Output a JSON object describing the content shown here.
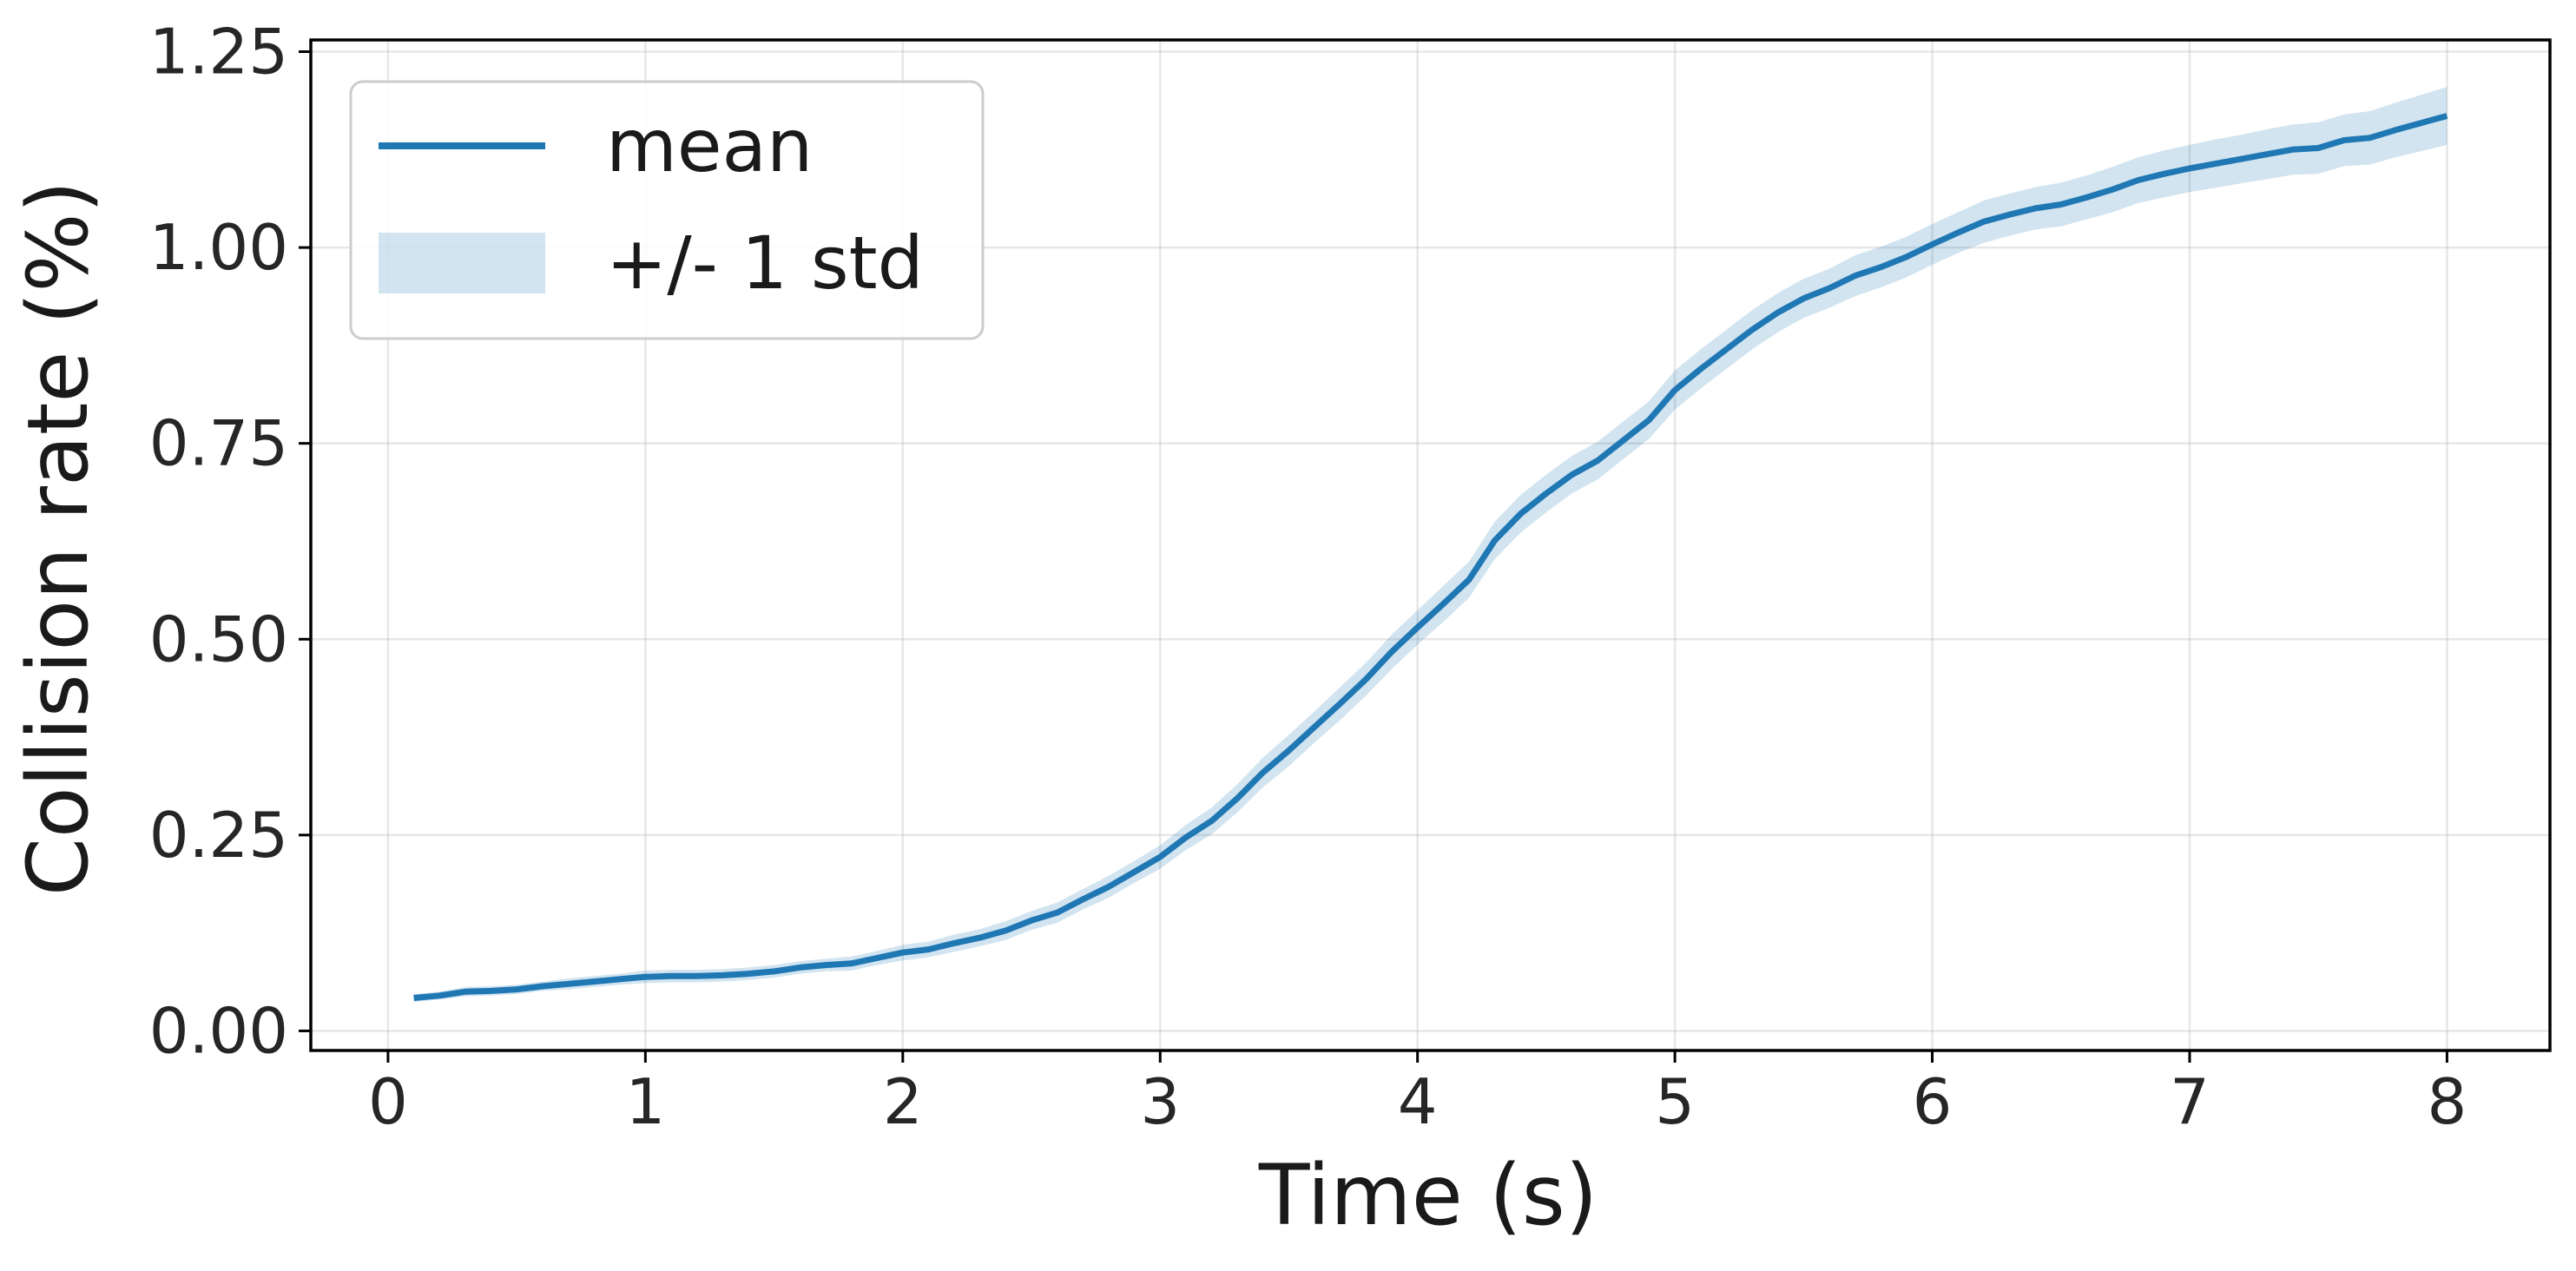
{
  "chart_data": {
    "type": "line",
    "title": "",
    "xlabel": "Time (s)",
    "ylabel": "Collision rate (%)",
    "xlim": [
      -0.3,
      8.4
    ],
    "ylim": [
      -0.025,
      1.265
    ],
    "xticks": [
      0,
      1,
      2,
      3,
      4,
      5,
      6,
      7,
      8
    ],
    "xtick_labels": [
      "0",
      "1",
      "2",
      "3",
      "4",
      "5",
      "6",
      "7",
      "8"
    ],
    "yticks": [
      0.0,
      0.25,
      0.5,
      0.75,
      1.0,
      1.25
    ],
    "ytick_labels": [
      "0.00",
      "0.25",
      "0.50",
      "0.75",
      "1.00",
      "1.25"
    ],
    "grid": true,
    "legend_position": "top-left",
    "legend": {
      "line_label": "mean",
      "band_label": "+/- 1 std"
    },
    "colors": {
      "line": "#1f77b4",
      "band": "#1f77b4"
    },
    "series": [
      {
        "name": "mean",
        "x": [
          0.1,
          0.2,
          0.3,
          0.4,
          0.5,
          0.6,
          0.7,
          0.8,
          0.9,
          1.0,
          1.1,
          1.2,
          1.3,
          1.4,
          1.5,
          1.6,
          1.7,
          1.8,
          1.9,
          2.0,
          2.1,
          2.2,
          2.3,
          2.4,
          2.5,
          2.6,
          2.7,
          2.8,
          2.9,
          3.0,
          3.1,
          3.2,
          3.3,
          3.4,
          3.5,
          3.6,
          3.7,
          3.8,
          3.9,
          4.0,
          4.1,
          4.2,
          4.3,
          4.4,
          4.5,
          4.6,
          4.7,
          4.8,
          4.9,
          5.0,
          5.1,
          5.2,
          5.3,
          5.4,
          5.5,
          5.6,
          5.7,
          5.8,
          5.9,
          6.0,
          6.1,
          6.2,
          6.3,
          6.4,
          6.5,
          6.6,
          6.7,
          6.8,
          6.9,
          7.0,
          7.1,
          7.2,
          7.3,
          7.4,
          7.5,
          7.6,
          7.7,
          7.8,
          7.9,
          8.0
        ],
        "y": [
          0.042,
          0.045,
          0.05,
          0.051,
          0.053,
          0.057,
          0.06,
          0.063,
          0.066,
          0.069,
          0.07,
          0.07,
          0.071,
          0.073,
          0.076,
          0.081,
          0.084,
          0.086,
          0.093,
          0.1,
          0.104,
          0.112,
          0.119,
          0.128,
          0.141,
          0.151,
          0.168,
          0.184,
          0.203,
          0.222,
          0.247,
          0.268,
          0.297,
          0.33,
          0.358,
          0.388,
          0.418,
          0.449,
          0.484,
          0.515,
          0.545,
          0.576,
          0.626,
          0.66,
          0.686,
          0.71,
          0.728,
          0.754,
          0.78,
          0.818,
          0.845,
          0.87,
          0.895,
          0.917,
          0.935,
          0.948,
          0.964,
          0.975,
          0.988,
          1.004,
          1.019,
          1.033,
          1.042,
          1.05,
          1.055,
          1.064,
          1.074,
          1.086,
          1.094,
          1.101,
          1.107,
          1.113,
          1.119,
          1.125,
          1.127,
          1.137,
          1.14,
          1.15,
          1.159,
          1.168
        ],
        "std": [
          0.005,
          0.005,
          0.006,
          0.006,
          0.006,
          0.006,
          0.007,
          0.007,
          0.007,
          0.008,
          0.008,
          0.008,
          0.008,
          0.008,
          0.008,
          0.008,
          0.008,
          0.009,
          0.009,
          0.01,
          0.01,
          0.011,
          0.011,
          0.012,
          0.012,
          0.013,
          0.013,
          0.014,
          0.014,
          0.015,
          0.016,
          0.017,
          0.018,
          0.019,
          0.02,
          0.02,
          0.021,
          0.021,
          0.022,
          0.022,
          0.023,
          0.023,
          0.024,
          0.024,
          0.024,
          0.024,
          0.024,
          0.024,
          0.024,
          0.025,
          0.025,
          0.025,
          0.025,
          0.025,
          0.025,
          0.025,
          0.026,
          0.026,
          0.026,
          0.026,
          0.026,
          0.027,
          0.027,
          0.027,
          0.028,
          0.028,
          0.029,
          0.029,
          0.03,
          0.03,
          0.031,
          0.031,
          0.032,
          0.032,
          0.033,
          0.033,
          0.034,
          0.035,
          0.036,
          0.037
        ]
      }
    ]
  }
}
